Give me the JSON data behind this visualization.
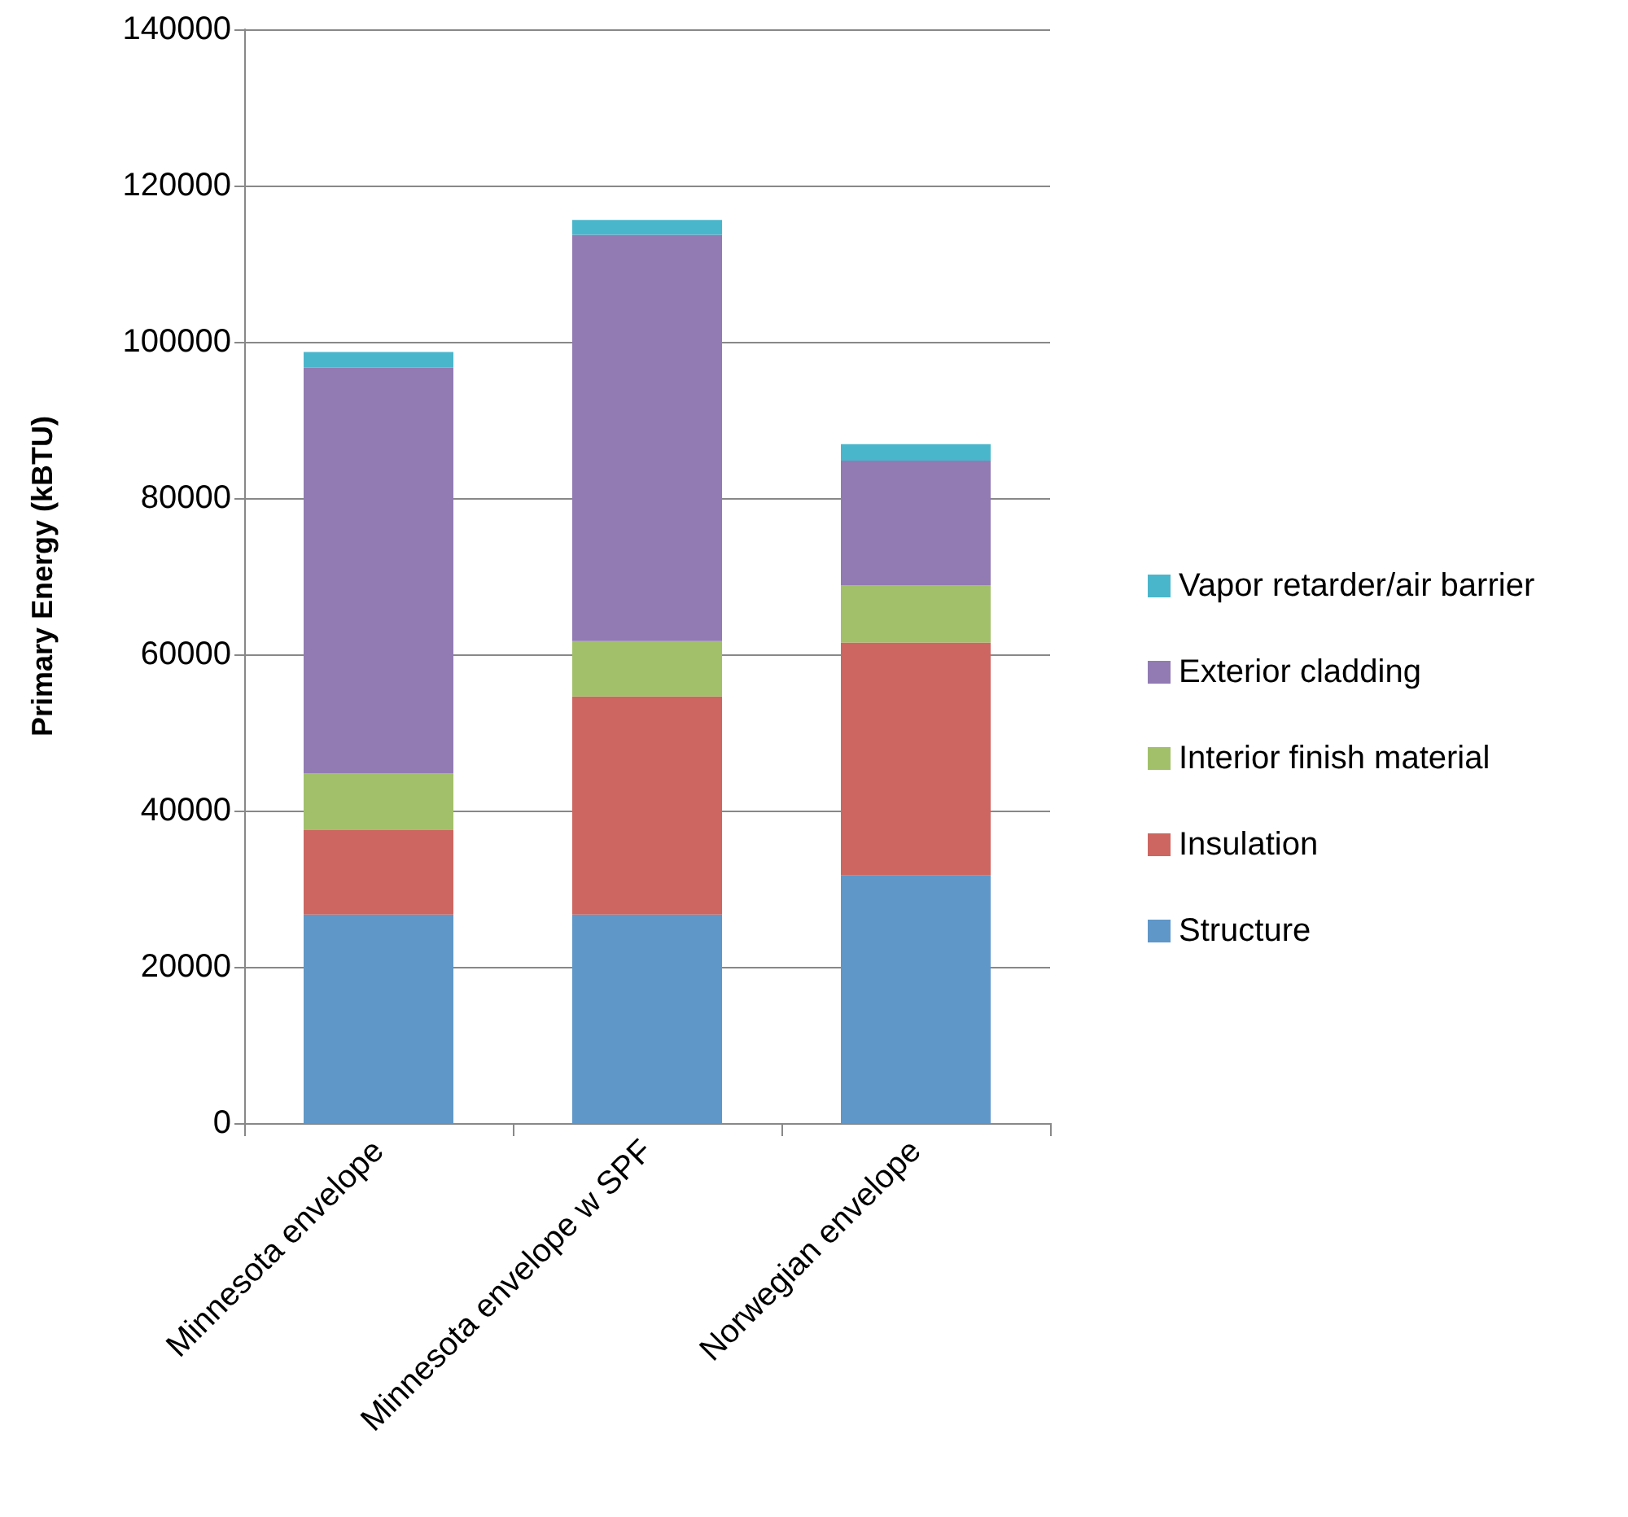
{
  "chart_data": {
    "type": "bar",
    "stacked": true,
    "ylabel": "Primary Energy (kBTU)",
    "categories": [
      "Minnesota envelope",
      "Minnesota envelope w SPF",
      "Norwegian envelope"
    ],
    "series": [
      {
        "name": "Structure",
        "color": "#5f97c8",
        "values": [
          26700,
          26700,
          31700
        ]
      },
      {
        "name": "Insulation",
        "color": "#cd6660",
        "values": [
          10800,
          27900,
          29800
        ]
      },
      {
        "name": "Interior finish material",
        "color": "#a2c06a",
        "values": [
          7300,
          7100,
          7300
        ]
      },
      {
        "name": "Exterior cladding",
        "color": "#927bb3",
        "values": [
          51900,
          52000,
          16000
        ]
      },
      {
        "name": "Vapor retarder/air barrier",
        "color": "#4ab6cb",
        "values": [
          2000,
          1900,
          2100
        ]
      }
    ],
    "ylim": [
      0,
      140000
    ],
    "yticks": [
      0,
      20000,
      40000,
      60000,
      80000,
      100000,
      120000,
      140000
    ],
    "grid": "y",
    "legend": "right"
  }
}
